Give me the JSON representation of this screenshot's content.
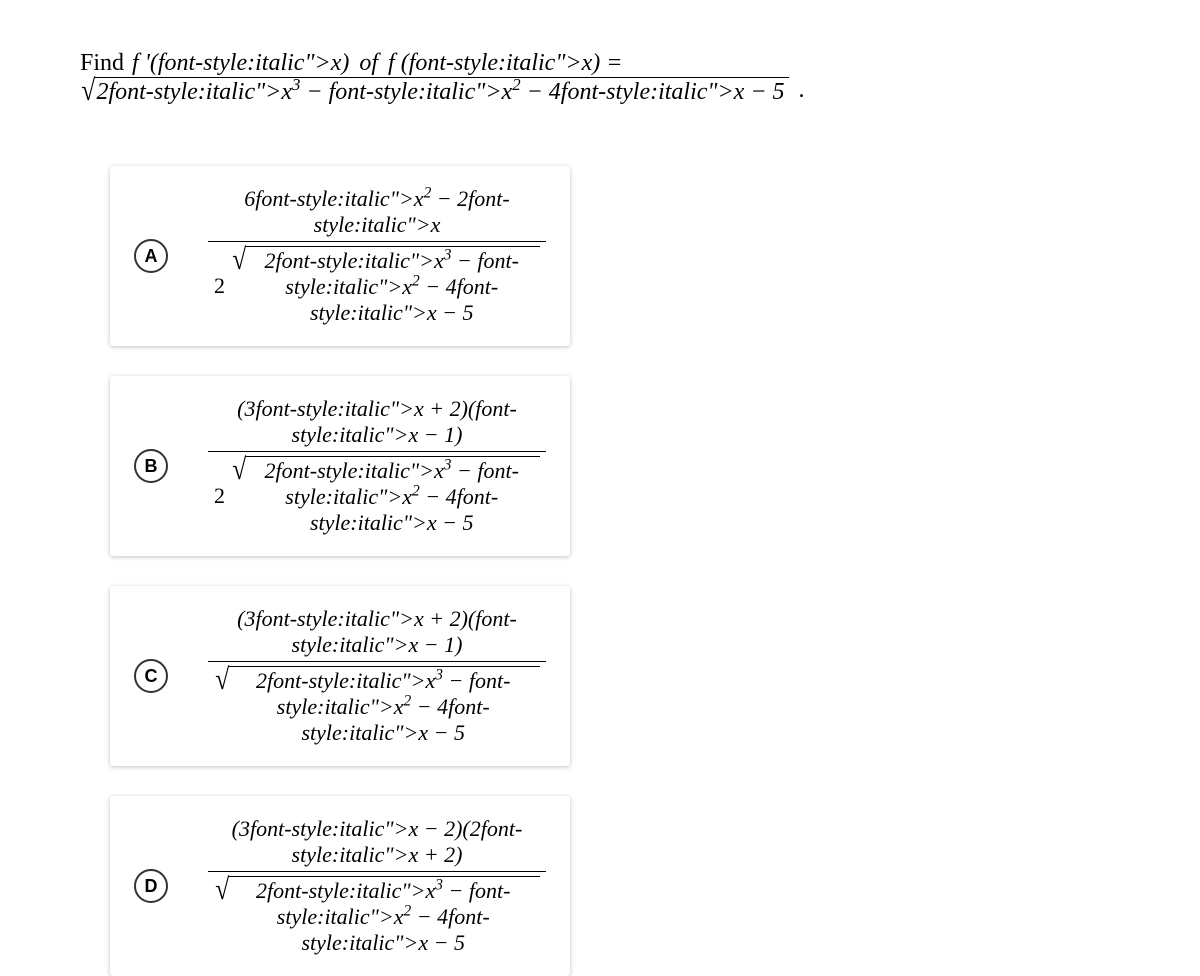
{
  "question": {
    "prefix_plain": "Find ",
    "fprime": "f '(x)",
    "of_word": " of ",
    "func_lhs": "f (x) =",
    "radicand": "2x³ − x² − 4x − 5",
    "period": "."
  },
  "options": [
    {
      "letter": "A",
      "numerator": "6x² − 2x",
      "den_coef": "2",
      "den_radicand": "2x³ − x² − 4x − 5"
    },
    {
      "letter": "B",
      "numerator": "(3x + 2)(x − 1)",
      "den_coef": "2",
      "den_radicand": "2x³ − x² − 4x − 5"
    },
    {
      "letter": "C",
      "numerator": "(3x + 2)(x − 1)",
      "den_coef": "",
      "den_radicand": "2x³ − x² − 4x − 5"
    },
    {
      "letter": "D",
      "numerator": "(3x − 2)(2x + 2)",
      "den_coef": "",
      "den_radicand": "2x³ − x² − 4x − 5"
    }
  ],
  "style": {
    "bg": "#ffffff",
    "card_shadow": "rgba(0,0,0,0.25)",
    "font_size_question": 24,
    "font_size_option": 22,
    "letter_border_color": "#333333"
  }
}
